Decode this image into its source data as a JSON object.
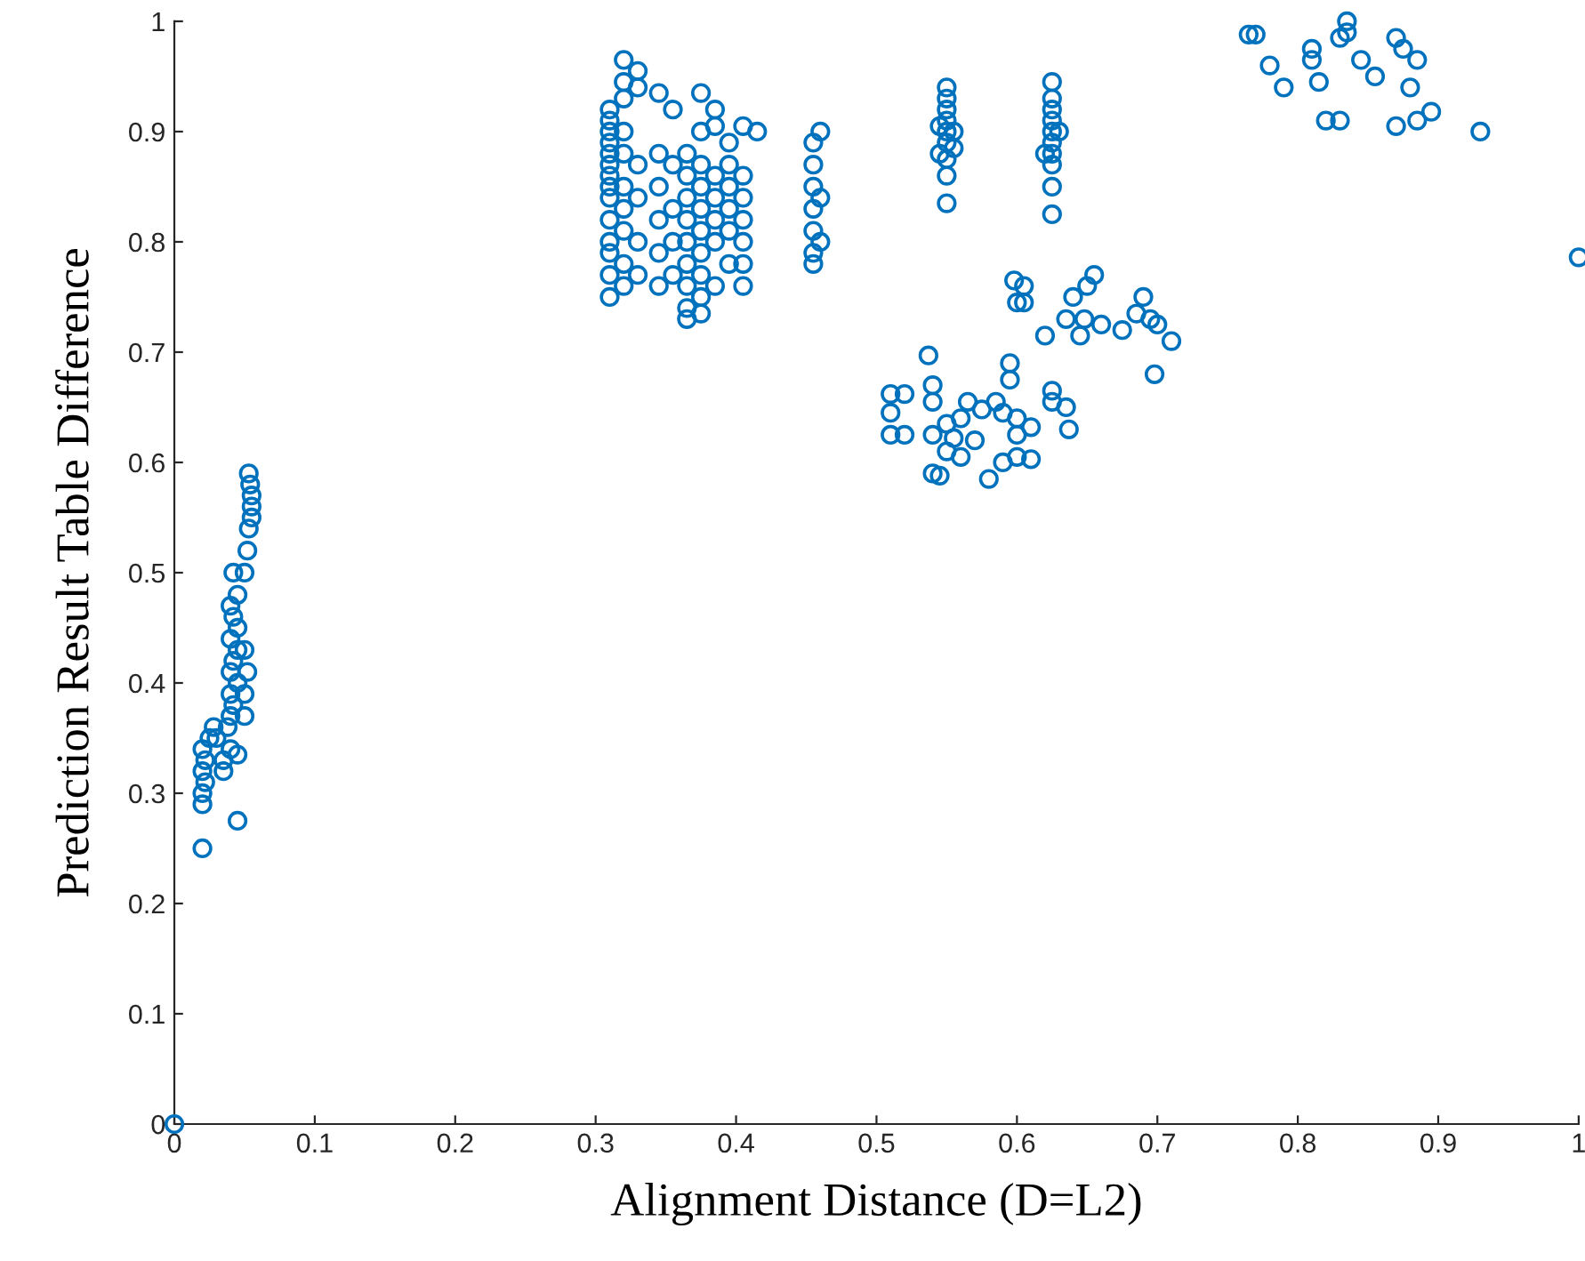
{
  "chart_data": {
    "type": "scatter",
    "xlabel": "Alignment Distance (D=L2)",
    "ylabel": "Prediction Result Table Difference",
    "xlim": [
      0,
      1
    ],
    "ylim": [
      0,
      1
    ],
    "xticks": [
      0,
      0.1,
      0.2,
      0.3,
      0.4,
      0.5,
      0.6,
      0.7,
      0.8,
      0.9,
      1
    ],
    "yticks": [
      0,
      0.1,
      0.2,
      0.3,
      0.4,
      0.5,
      0.6,
      0.7,
      0.8,
      0.9,
      1
    ],
    "marker": "circle",
    "grid": false,
    "series": [
      {
        "color": "#0072bd",
        "x": [
          0,
          0.02,
          0.045,
          0.02,
          0.02,
          0.022,
          0.02,
          0.022,
          0.02,
          0.025,
          0.028,
          0.03,
          0.035,
          0.035,
          0.04,
          0.045,
          0.038,
          0.04,
          0.042,
          0.04,
          0.045,
          0.04,
          0.042,
          0.045,
          0.04,
          0.045,
          0.042,
          0.04,
          0.045,
          0.042,
          0.05,
          0.05,
          0.052,
          0.05,
          0.05,
          0.052,
          0.053,
          0.055,
          0.055,
          0.055,
          0.054,
          0.053,
          0.31,
          0.31,
          0.31,
          0.31,
          0.31,
          0.31,
          0.31,
          0.31,
          0.31,
          0.31,
          0.31,
          0.31,
          0.31,
          0.31,
          0.32,
          0.32,
          0.32,
          0.32,
          0.32,
          0.32,
          0.32,
          0.32,
          0.32,
          0.32,
          0.33,
          0.33,
          0.33,
          0.33,
          0.33,
          0.33,
          0.345,
          0.345,
          0.345,
          0.345,
          0.345,
          0.345,
          0.355,
          0.355,
          0.355,
          0.355,
          0.355,
          0.365,
          0.365,
          0.365,
          0.365,
          0.365,
          0.365,
          0.365,
          0.365,
          0.365,
          0.375,
          0.375,
          0.375,
          0.375,
          0.375,
          0.375,
          0.375,
          0.375,
          0.375,
          0.375,
          0.385,
          0.385,
          0.385,
          0.385,
          0.385,
          0.385,
          0.385,
          0.395,
          0.395,
          0.395,
          0.395,
          0.395,
          0.395,
          0.405,
          0.405,
          0.405,
          0.405,
          0.405,
          0.405,
          0.405,
          0.415,
          0.455,
          0.455,
          0.455,
          0.455,
          0.455,
          0.455,
          0.455,
          0.46,
          0.46,
          0.46,
          0.55,
          0.55,
          0.55,
          0.55,
          0.55,
          0.55,
          0.55,
          0.55,
          0.55,
          0.545,
          0.545,
          0.555,
          0.555,
          0.625,
          0.625,
          0.625,
          0.625,
          0.625,
          0.625,
          0.625,
          0.625,
          0.625,
          0.625,
          0.62,
          0.63,
          0.51,
          0.51,
          0.52,
          0.51,
          0.52,
          0.537,
          0.54,
          0.54,
          0.54,
          0.545,
          0.54,
          0.55,
          0.55,
          0.555,
          0.56,
          0.56,
          0.565,
          0.57,
          0.575,
          0.58,
          0.585,
          0.59,
          0.59,
          0.595,
          0.595,
          0.6,
          0.6,
          0.6,
          0.61,
          0.61,
          0.598,
          0.6,
          0.605,
          0.605,
          0.62,
          0.625,
          0.625,
          0.635,
          0.637,
          0.635,
          0.64,
          0.645,
          0.648,
          0.65,
          0.655,
          0.66,
          0.675,
          0.685,
          0.69,
          0.695,
          0.7,
          0.698,
          0.71,
          0.765,
          0.77,
          0.78,
          0.79,
          0.81,
          0.81,
          0.815,
          0.82,
          0.83,
          0.83,
          0.835,
          0.835,
          0.845,
          0.855,
          0.87,
          0.875,
          0.87,
          0.88,
          0.885,
          0.885,
          0.895,
          0.93,
          1.0
        ],
        "values": [
          0,
          0.25,
          0.275,
          0.29,
          0.3,
          0.31,
          0.32,
          0.33,
          0.34,
          0.35,
          0.36,
          0.35,
          0.32,
          0.33,
          0.34,
          0.335,
          0.36,
          0.37,
          0.38,
          0.39,
          0.4,
          0.41,
          0.42,
          0.43,
          0.44,
          0.45,
          0.46,
          0.47,
          0.48,
          0.5,
          0.37,
          0.39,
          0.41,
          0.43,
          0.5,
          0.52,
          0.54,
          0.55,
          0.56,
          0.57,
          0.58,
          0.59,
          0.75,
          0.77,
          0.79,
          0.8,
          0.82,
          0.84,
          0.85,
          0.86,
          0.87,
          0.88,
          0.89,
          0.9,
          0.91,
          0.92,
          0.76,
          0.78,
          0.81,
          0.83,
          0.85,
          0.88,
          0.9,
          0.93,
          0.945,
          0.965,
          0.77,
          0.8,
          0.84,
          0.87,
          0.955,
          0.94,
          0.76,
          0.79,
          0.82,
          0.85,
          0.88,
          0.935,
          0.77,
          0.8,
          0.83,
          0.87,
          0.92,
          0.73,
          0.74,
          0.76,
          0.78,
          0.8,
          0.82,
          0.84,
          0.86,
          0.88,
          0.735,
          0.75,
          0.77,
          0.79,
          0.81,
          0.83,
          0.85,
          0.87,
          0.9,
          0.935,
          0.76,
          0.8,
          0.82,
          0.84,
          0.86,
          0.905,
          0.92,
          0.78,
          0.81,
          0.83,
          0.85,
          0.87,
          0.89,
          0.76,
          0.78,
          0.8,
          0.82,
          0.84,
          0.86,
          0.905,
          0.9,
          0.78,
          0.79,
          0.81,
          0.83,
          0.85,
          0.87,
          0.89,
          0.8,
          0.9,
          0.84,
          0.835,
          0.86,
          0.875,
          0.89,
          0.9,
          0.91,
          0.92,
          0.93,
          0.94,
          0.88,
          0.905,
          0.9,
          0.885,
          0.825,
          0.85,
          0.87,
          0.88,
          0.89,
          0.9,
          0.91,
          0.92,
          0.93,
          0.945,
          0.88,
          0.9,
          0.645,
          0.662,
          0.662,
          0.625,
          0.625,
          0.697,
          0.67,
          0.655,
          0.59,
          0.588,
          0.625,
          0.635,
          0.61,
          0.622,
          0.605,
          0.64,
          0.655,
          0.62,
          0.648,
          0.585,
          0.655,
          0.645,
          0.6,
          0.69,
          0.675,
          0.64,
          0.625,
          0.605,
          0.632,
          0.603,
          0.765,
          0.745,
          0.76,
          0.745,
          0.715,
          0.665,
          0.655,
          0.65,
          0.63,
          0.73,
          0.75,
          0.715,
          0.73,
          0.76,
          0.77,
          0.725,
          0.72,
          0.735,
          0.75,
          0.73,
          0.725,
          0.68,
          0.71,
          0.988,
          0.988,
          0.96,
          0.94,
          0.975,
          0.965,
          0.945,
          0.91,
          0.91,
          0.985,
          1.0,
          0.99,
          0.965,
          0.95,
          0.985,
          0.975,
          0.905,
          0.94,
          0.965,
          0.91,
          0.918,
          0.9,
          0.786
        ]
      }
    ]
  }
}
